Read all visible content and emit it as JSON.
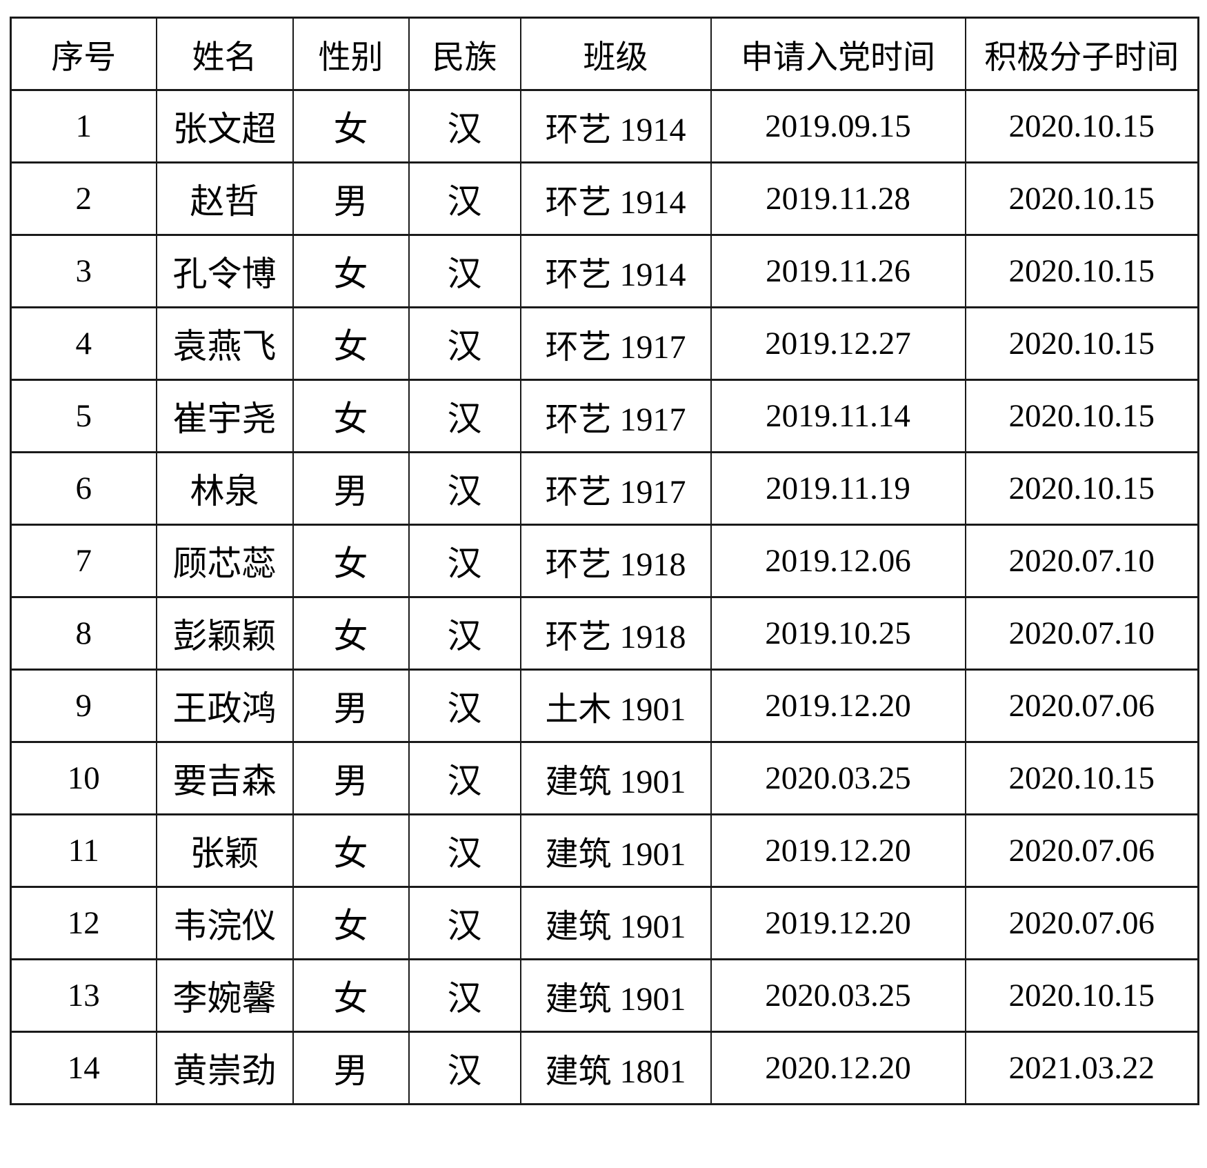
{
  "table": {
    "headers": [
      "序号",
      "姓名",
      "性别",
      "民族",
      "班级",
      "申请入党时间",
      "积极分子时间"
    ],
    "rows": [
      [
        "1",
        "张文超",
        "女",
        "汉",
        "环艺 1914",
        "2019.09.15",
        "2020.10.15"
      ],
      [
        "2",
        "赵哲",
        "男",
        "汉",
        "环艺 1914",
        "2019.11.28",
        "2020.10.15"
      ],
      [
        "3",
        "孔令博",
        "女",
        "汉",
        "环艺 1914",
        "2019.11.26",
        "2020.10.15"
      ],
      [
        "4",
        "袁燕飞",
        "女",
        "汉",
        "环艺 1917",
        "2019.12.27",
        "2020.10.15"
      ],
      [
        "5",
        "崔宇尧",
        "女",
        "汉",
        "环艺 1917",
        "2019.11.14",
        "2020.10.15"
      ],
      [
        "6",
        "林泉",
        "男",
        "汉",
        "环艺 1917",
        "2019.11.19",
        "2020.10.15"
      ],
      [
        "7",
        "顾芯蕊",
        "女",
        "汉",
        "环艺 1918",
        "2019.12.06",
        "2020.07.10"
      ],
      [
        "8",
        "彭颖颖",
        "女",
        "汉",
        "环艺 1918",
        "2019.10.25",
        "2020.07.10"
      ],
      [
        "9",
        "王政鸿",
        "男",
        "汉",
        "土木 1901",
        "2019.12.20",
        "2020.07.06"
      ],
      [
        "10",
        "要吉森",
        "男",
        "汉",
        "建筑 1901",
        "2020.03.25",
        "2020.10.15"
      ],
      [
        "11",
        "张颖",
        "女",
        "汉",
        "建筑 1901",
        "2019.12.20",
        "2020.07.06"
      ],
      [
        "12",
        "韦浣仪",
        "女",
        "汉",
        "建筑 1901",
        "2019.12.20",
        "2020.07.06"
      ],
      [
        "13",
        "李婉馨",
        "女",
        "汉",
        "建筑 1901",
        "2020.03.25",
        "2020.10.15"
      ],
      [
        "14",
        "黄崇劲",
        "男",
        "汉",
        "建筑 1801",
        "2020.12.20",
        "2021.03.22"
      ]
    ]
  }
}
